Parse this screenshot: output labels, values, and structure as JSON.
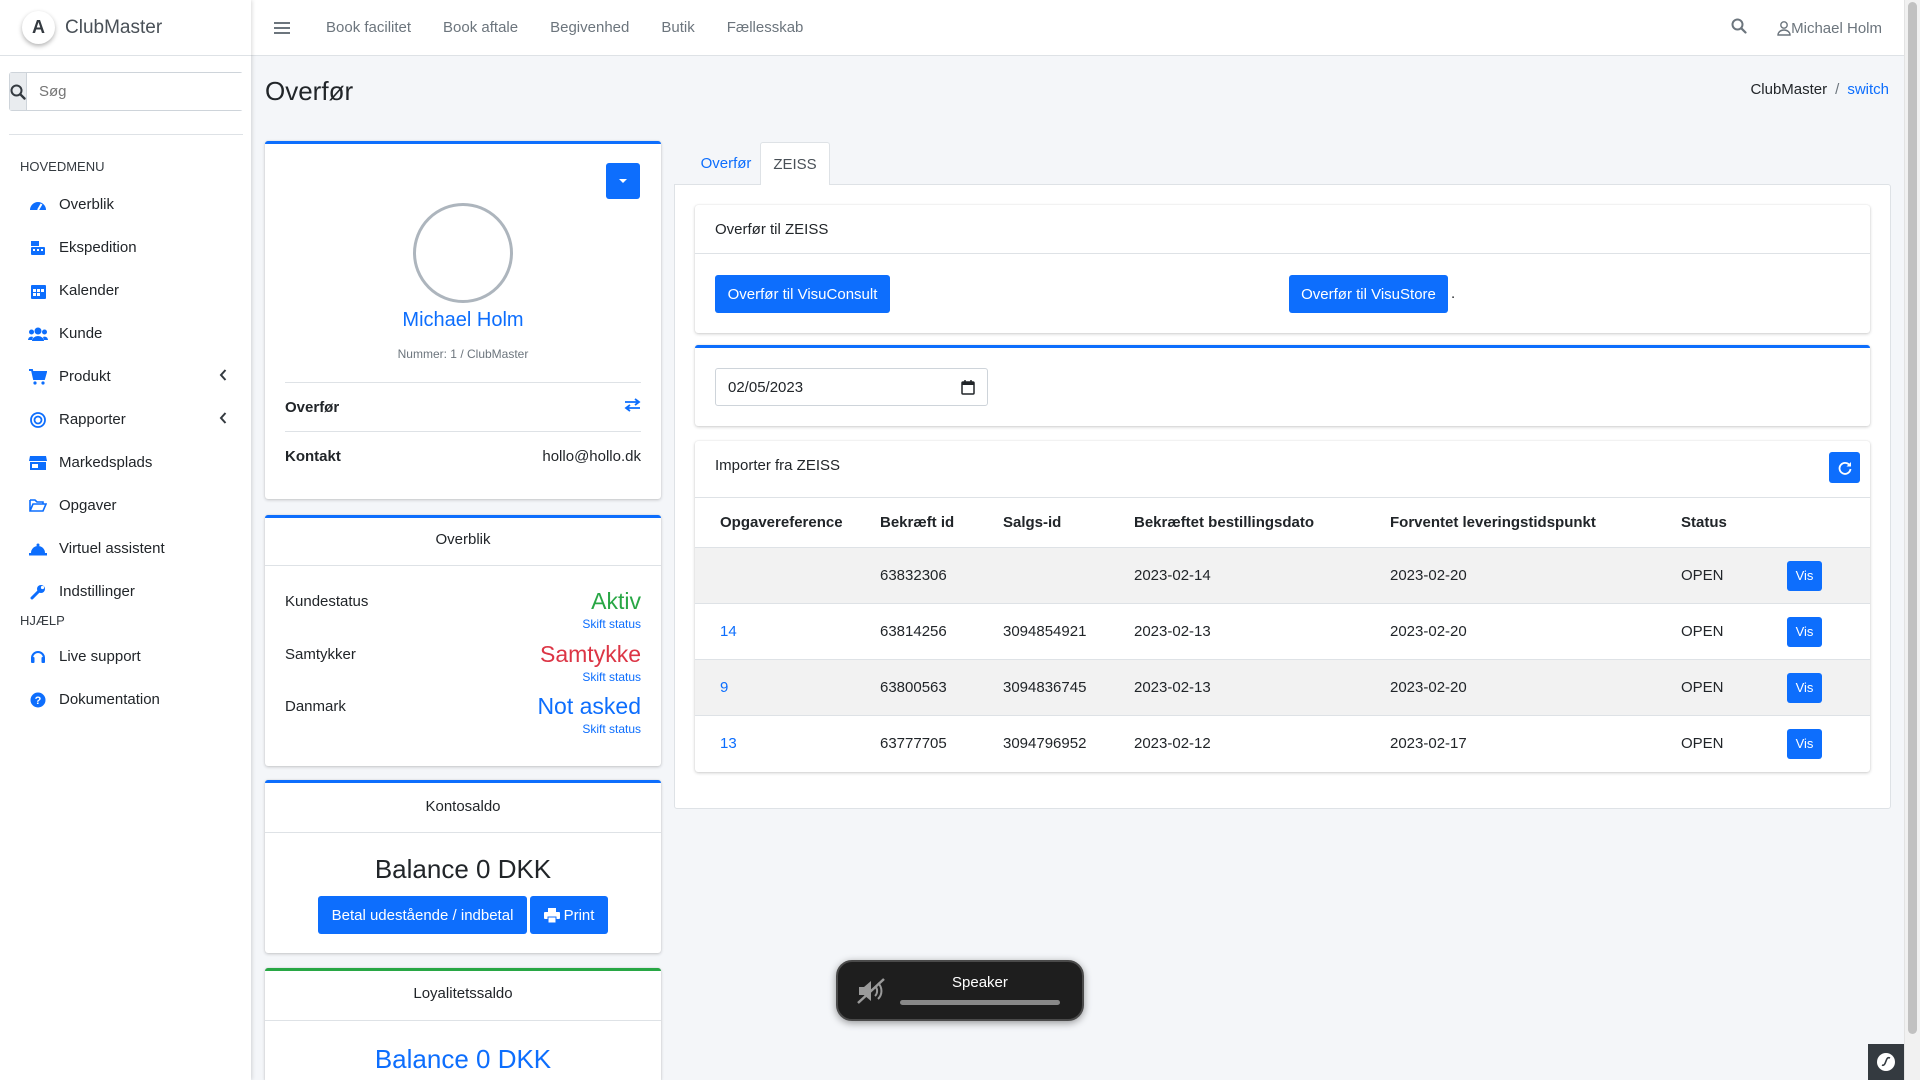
{
  "brand": {
    "name": "ClubMaster",
    "logo_letter": "A"
  },
  "search": {
    "placeholder": "Søg"
  },
  "sidebar": {
    "main_header": "HOVEDMENU",
    "items": [
      {
        "label": "Overblik",
        "icon": "dashboard-icon"
      },
      {
        "label": "Ekspedition",
        "icon": "cash-register-icon"
      },
      {
        "label": "Kalender",
        "icon": "calendar-icon"
      },
      {
        "label": "Kunde",
        "icon": "users-icon"
      },
      {
        "label": "Produkt",
        "icon": "cart-icon",
        "has_submenu": true
      },
      {
        "label": "Rapporter",
        "icon": "target-icon",
        "has_submenu": true
      },
      {
        "label": "Markedsplads",
        "icon": "store-icon"
      },
      {
        "label": "Opgaver",
        "icon": "folder-open-icon"
      },
      {
        "label": "Virtuel assistent",
        "icon": "bell-icon"
      },
      {
        "label": "Indstillinger",
        "icon": "wrench-icon"
      }
    ],
    "help_header": "HJÆLP",
    "help_items": [
      {
        "label": "Live support",
        "icon": "headset-icon"
      },
      {
        "label": "Dokumentation",
        "icon": "question-circle-icon"
      }
    ]
  },
  "topbar": {
    "links": [
      "Book facilitet",
      "Book aftale",
      "Begivenhed",
      "Butik",
      "Fællesskab"
    ],
    "user_name": "Michael Holm"
  },
  "page": {
    "title": "Overfør",
    "breadcrumb": {
      "home": "ClubMaster",
      "current": "switch"
    }
  },
  "profile": {
    "name": "Michael Holm",
    "number": "Nummer: 1 / ClubMaster",
    "rows": [
      {
        "label": "Overfør",
        "value": "",
        "icon": "exchange-icon"
      },
      {
        "label": "Kontakt",
        "value": "hollo@hollo.dk"
      }
    ]
  },
  "overview": {
    "title": "Overblik",
    "rows": [
      {
        "label": "Kundestatus",
        "value": "Aktiv",
        "color": "#28a745",
        "link": "Skift status"
      },
      {
        "label": "Samtykker",
        "value": "Samtykke",
        "color": "#dc3545",
        "link": "Skift status"
      },
      {
        "label": "Danmark",
        "value": "Not asked",
        "color": "#0d6efd",
        "link": "Skift status"
      }
    ]
  },
  "account": {
    "title": "Kontosaldo",
    "balance": "Balance 0 DKK",
    "pay_button": "Betal udestående / indbetal",
    "print_button": "Print"
  },
  "loyalty": {
    "title": "Loyalitetssaldo",
    "balance": "Balance 0 DKK"
  },
  "tabs": [
    "Overfør",
    "ZEISS"
  ],
  "active_tab": "ZEISS",
  "transfer": {
    "title": "Overfør til ZEISS",
    "button_consult": "Overfør til VisuConsult",
    "button_store": "Overfør til VisuStore",
    "trailing": "."
  },
  "date_filter": {
    "value": "02/05/2023"
  },
  "import": {
    "title": "Importer fra ZEISS",
    "columns": [
      "Opgavereference",
      "Bekræft id",
      "Salgs-id",
      "Bekræftet bestillingsdato",
      "Forventet leveringstidspunkt",
      "Status",
      ""
    ],
    "rows": [
      {
        "ref": "",
        "confirm_id": "63832306",
        "sales_id": "",
        "order_date": "2023-02-14",
        "delivery": "2023-02-20",
        "status": "OPEN",
        "action": "Vis"
      },
      {
        "ref": "14",
        "confirm_id": "63814256",
        "sales_id": "3094854921",
        "order_date": "2023-02-13",
        "delivery": "2023-02-20",
        "status": "OPEN",
        "action": "Vis"
      },
      {
        "ref": "9",
        "confirm_id": "63800563",
        "sales_id": "3094836745",
        "order_date": "2023-02-13",
        "delivery": "2023-02-20",
        "status": "OPEN",
        "action": "Vis"
      },
      {
        "ref": "13",
        "confirm_id": "63777705",
        "sales_id": "3094796952",
        "order_date": "2023-02-12",
        "delivery": "2023-02-17",
        "status": "OPEN",
        "action": "Vis"
      }
    ]
  },
  "speaker": {
    "label": "Speaker",
    "icon": "speaker-muted-icon"
  },
  "colors": {
    "primary": "#0d6efd",
    "success": "#28a745",
    "danger": "#dc3545",
    "background": "#f4f6f9"
  }
}
